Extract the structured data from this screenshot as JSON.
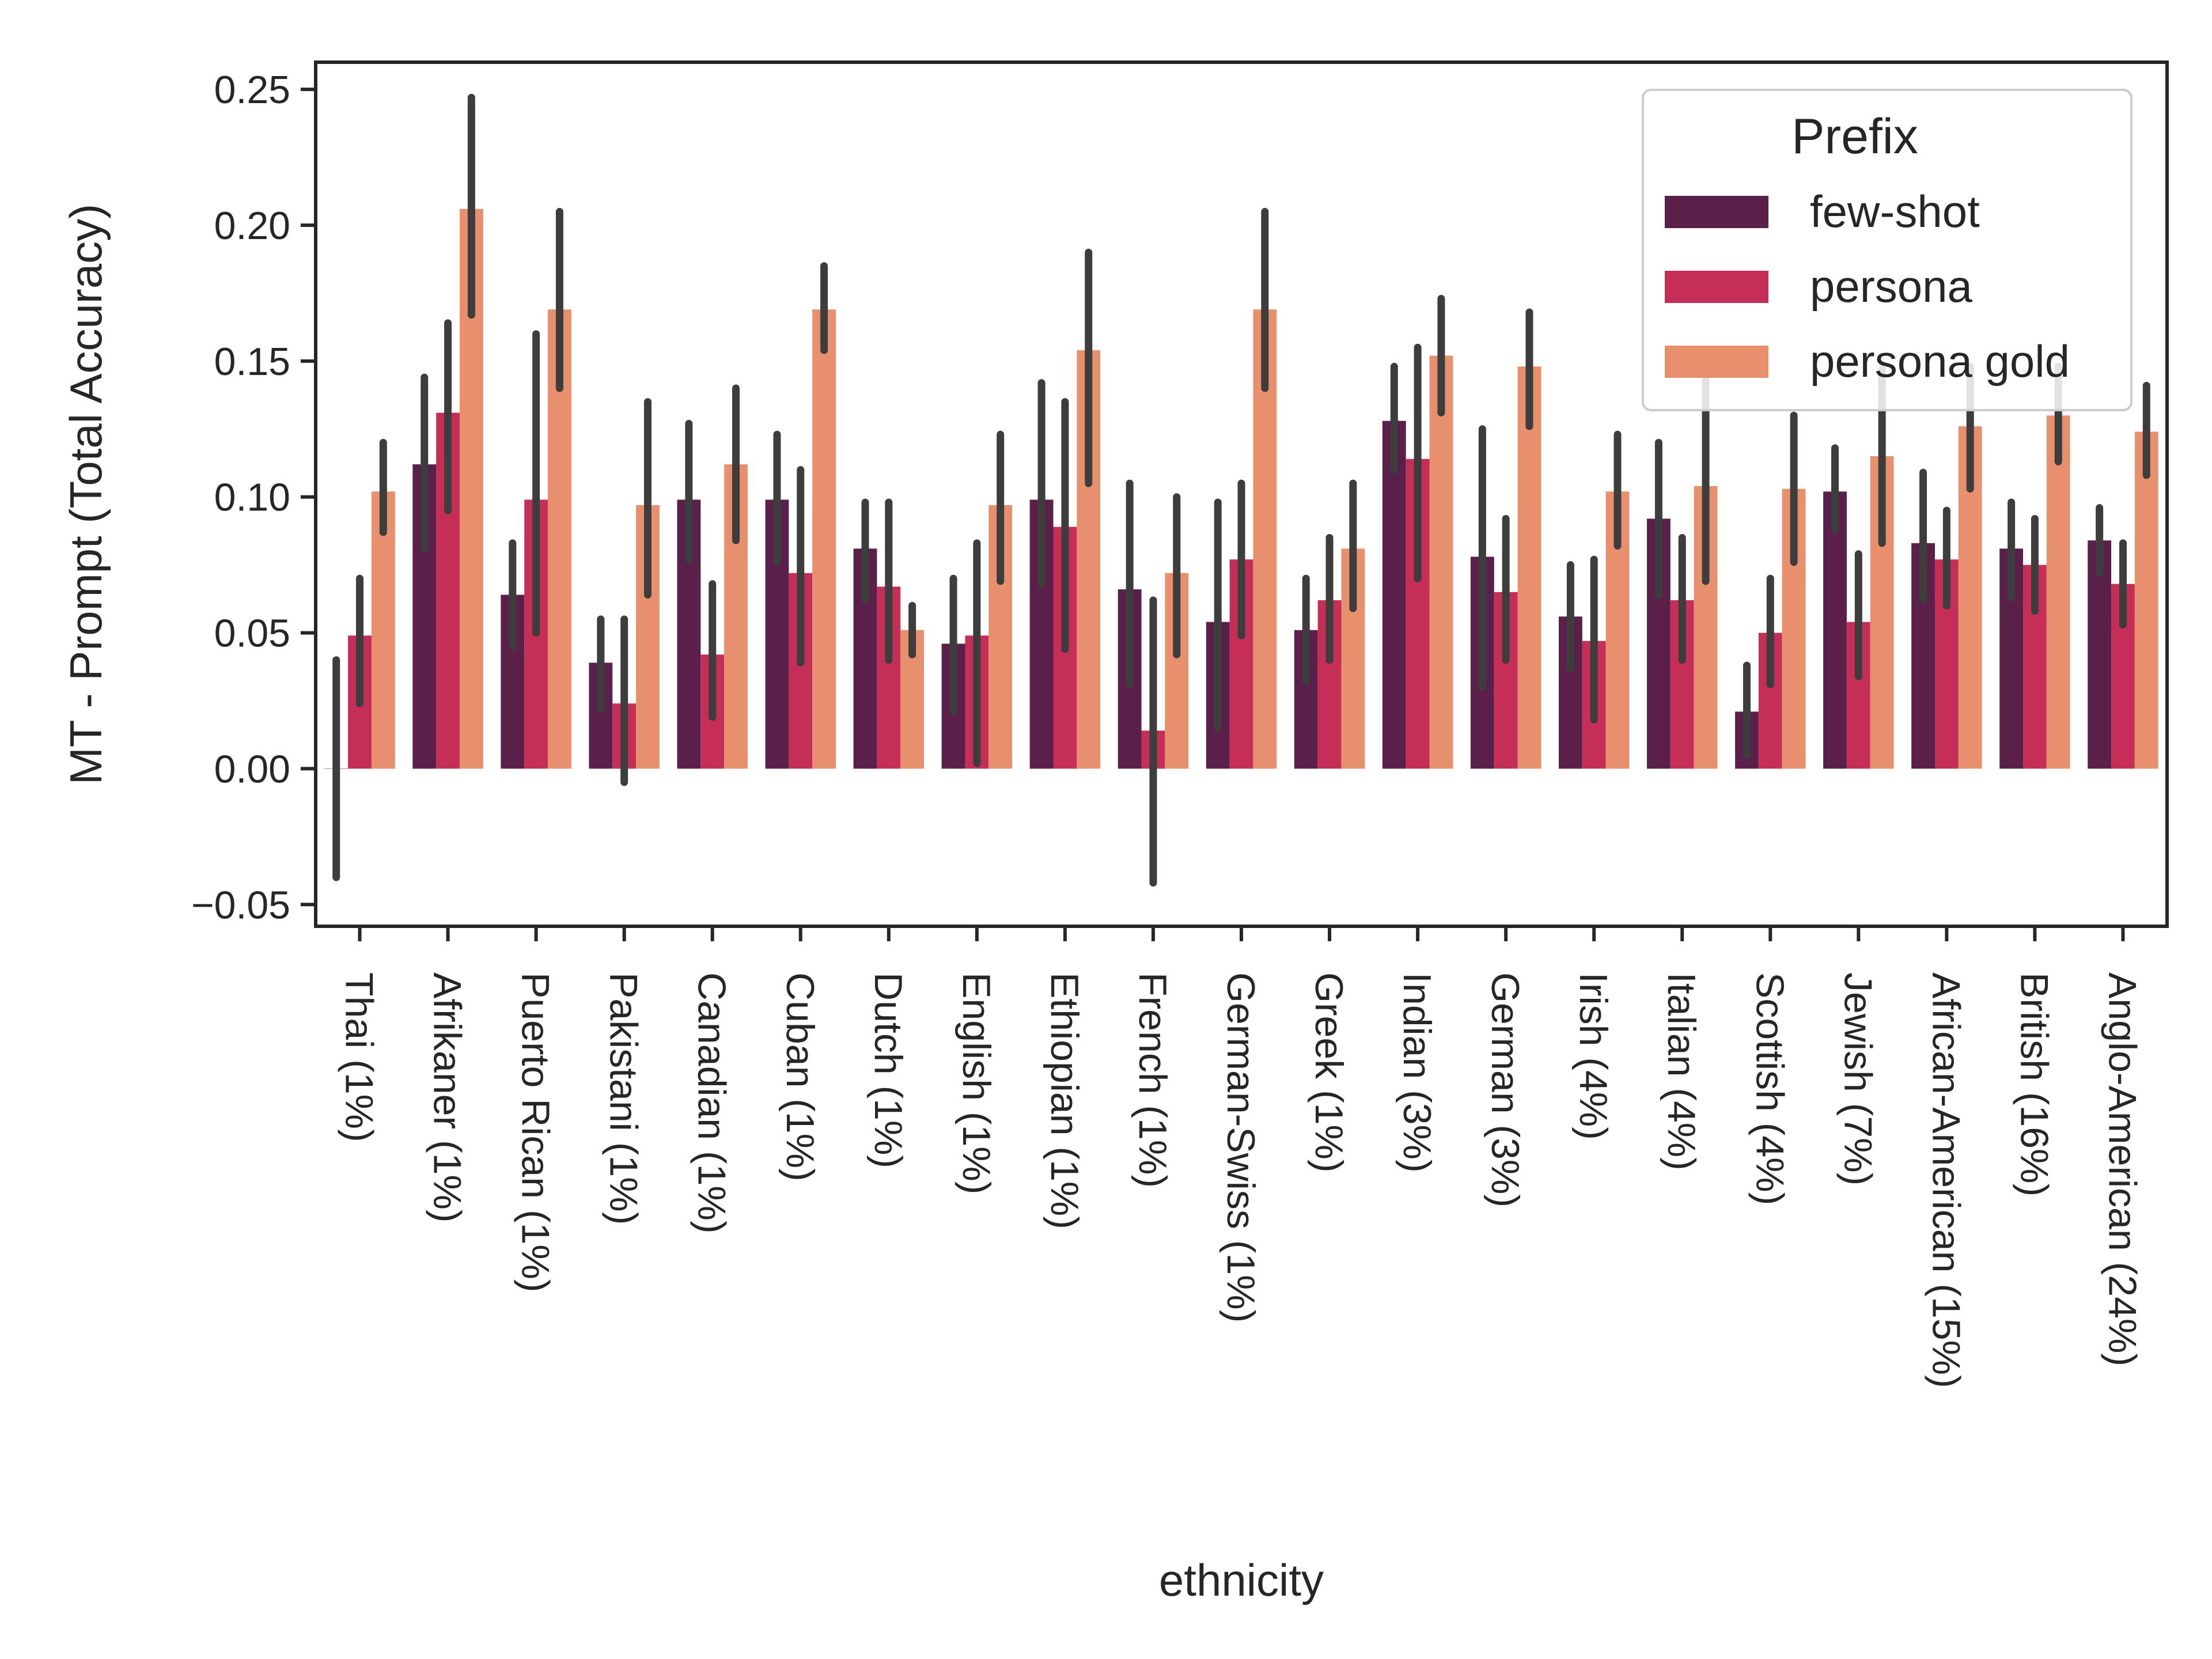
{
  "chart_data": {
    "type": "bar",
    "title": "",
    "xlabel": "ethnicity",
    "ylabel": "MT - Prompt (Total Accuracy)",
    "ylim": [
      -0.058,
      0.26
    ],
    "yticks": [
      -0.05,
      0.0,
      0.05,
      0.1,
      0.15,
      0.2,
      0.25
    ],
    "ytick_labels": [
      "−0.05",
      "0.00",
      "0.05",
      "0.10",
      "0.15",
      "0.20",
      "0.25"
    ],
    "grid": false,
    "legend": {
      "title": "Prefix",
      "position": "top-right"
    },
    "categories": [
      "Thai (1%)",
      "Afrikaner (1%)",
      "Puerto Rican (1%)",
      "Pakistani (1%)",
      "Canadian (1%)",
      "Cuban (1%)",
      "Dutch (1%)",
      "English (1%)",
      "Ethiopian (1%)",
      "French (1%)",
      "German-Swiss (1%)",
      "Greek (1%)",
      "Indian (3%)",
      "German (3%)",
      "Irish (4%)",
      "Italian (4%)",
      "Scottish (4%)",
      "Jewish (7%)",
      "African-American (15%)",
      "British (16%)",
      "Anglo-American (24%)"
    ],
    "series": [
      {
        "name": "few-shot",
        "color": "#5b2049",
        "values": [
          0.0,
          0.112,
          0.064,
          0.039,
          0.099,
          0.099,
          0.081,
          0.046,
          0.099,
          0.066,
          0.054,
          0.051,
          0.128,
          0.078,
          0.056,
          0.092,
          0.021,
          0.102,
          0.083,
          0.081,
          0.084
        ],
        "ci_low": [
          -0.04,
          0.081,
          0.045,
          0.022,
          0.077,
          0.076,
          0.062,
          0.021,
          0.068,
          0.031,
          0.015,
          0.032,
          0.11,
          0.03,
          0.037,
          0.064,
          0.005,
          0.088,
          0.062,
          0.063,
          0.072
        ],
        "ci_high": [
          0.04,
          0.144,
          0.083,
          0.055,
          0.127,
          0.123,
          0.098,
          0.07,
          0.142,
          0.105,
          0.098,
          0.07,
          0.148,
          0.125,
          0.075,
          0.12,
          0.038,
          0.118,
          0.109,
          0.098,
          0.096
        ]
      },
      {
        "name": "persona",
        "color": "#c42e57",
        "values": [
          0.049,
          0.131,
          0.099,
          0.024,
          0.042,
          0.072,
          0.067,
          0.049,
          0.089,
          0.014,
          0.077,
          0.062,
          0.114,
          0.065,
          0.047,
          0.062,
          0.05,
          0.054,
          0.077,
          0.075,
          0.068
        ],
        "ci_low": [
          0.024,
          0.095,
          0.05,
          -0.005,
          0.019,
          0.039,
          0.04,
          0.002,
          0.044,
          -0.042,
          0.049,
          0.04,
          0.07,
          0.04,
          0.018,
          0.04,
          0.031,
          0.034,
          0.06,
          0.058,
          0.053
        ],
        "ci_high": [
          0.07,
          0.164,
          0.16,
          0.055,
          0.068,
          0.11,
          0.098,
          0.083,
          0.135,
          0.062,
          0.105,
          0.085,
          0.155,
          0.092,
          0.077,
          0.085,
          0.07,
          0.079,
          0.095,
          0.092,
          0.083
        ]
      },
      {
        "name": "persona gold",
        "color": "#e8906e",
        "values": [
          0.102,
          0.206,
          0.169,
          0.097,
          0.112,
          0.169,
          0.051,
          0.097,
          0.154,
          0.072,
          0.169,
          0.081,
          0.152,
          0.148,
          0.102,
          0.104,
          0.103,
          0.115,
          0.126,
          0.13,
          0.124
        ],
        "ci_low": [
          0.087,
          0.167,
          0.14,
          0.064,
          0.084,
          0.154,
          0.042,
          0.069,
          0.105,
          0.042,
          0.14,
          0.059,
          0.131,
          0.126,
          0.082,
          0.069,
          0.076,
          0.083,
          0.103,
          0.113,
          0.108
        ],
        "ci_high": [
          0.12,
          0.247,
          0.205,
          0.135,
          0.14,
          0.185,
          0.06,
          0.123,
          0.19,
          0.1,
          0.205,
          0.105,
          0.173,
          0.168,
          0.123,
          0.143,
          0.13,
          0.147,
          0.148,
          0.148,
          0.141
        ]
      }
    ]
  }
}
